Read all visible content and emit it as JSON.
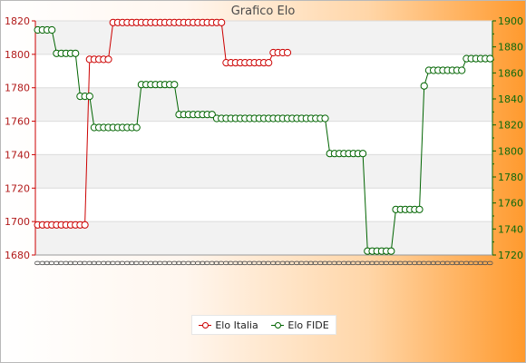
{
  "chart_data": {
    "type": "line",
    "title": "Grafico Elo",
    "grid": true,
    "legend_position": "bottom",
    "y_left": {
      "ylim": [
        1680,
        1820
      ],
      "ticks": [
        1680,
        1700,
        1720,
        1740,
        1760,
        1780,
        1800,
        1820
      ],
      "color": "#cc0000"
    },
    "y_right": {
      "ylim": [
        1720,
        1900
      ],
      "ticks": [
        1720,
        1740,
        1760,
        1780,
        1800,
        1820,
        1840,
        1860,
        1880,
        1900
      ],
      "color": "#006400"
    },
    "x_label_tail": "0",
    "series": [
      {
        "name": "Elo Italia",
        "axis": "left",
        "color": "#cc0000",
        "values": [
          1698,
          1698,
          1698,
          1698,
          1698,
          1698,
          1698,
          1698,
          1698,
          1698,
          1698,
          1797,
          1797,
          1797,
          1797,
          1797,
          1819,
          1819,
          1819,
          1819,
          1819,
          1819,
          1819,
          1819,
          1819,
          1819,
          1819,
          1819,
          1819,
          1819,
          1819,
          1819,
          1819,
          1819,
          1819,
          1819,
          1819,
          1819,
          1819,
          1819,
          1795,
          1795,
          1795,
          1795,
          1795,
          1795,
          1795,
          1795,
          1795,
          1795,
          1801,
          1801,
          1801,
          1801
        ]
      },
      {
        "name": "Elo FIDE",
        "axis": "right",
        "color": "#006400",
        "values": [
          1893,
          1893,
          1893,
          1893,
          1875,
          1875,
          1875,
          1875,
          1875,
          1842,
          1842,
          1842,
          1818,
          1818,
          1818,
          1818,
          1818,
          1818,
          1818,
          1818,
          1818,
          1818,
          1851,
          1851,
          1851,
          1851,
          1851,
          1851,
          1851,
          1851,
          1828,
          1828,
          1828,
          1828,
          1828,
          1828,
          1828,
          1828,
          1825,
          1825,
          1825,
          1825,
          1825,
          1825,
          1825,
          1825,
          1825,
          1825,
          1825,
          1825,
          1825,
          1825,
          1825,
          1825,
          1825,
          1825,
          1825,
          1825,
          1825,
          1825,
          1825,
          1825,
          1798,
          1798,
          1798,
          1798,
          1798,
          1798,
          1798,
          1798,
          1723,
          1723,
          1723,
          1723,
          1723,
          1723,
          1755,
          1755,
          1755,
          1755,
          1755,
          1755,
          1850,
          1862,
          1862,
          1862,
          1862,
          1862,
          1862,
          1862,
          1862,
          1871,
          1871,
          1871,
          1871,
          1871,
          1871
        ]
      }
    ]
  },
  "legend": {
    "italia": "Elo Italia",
    "fide": "Elo FIDE"
  }
}
